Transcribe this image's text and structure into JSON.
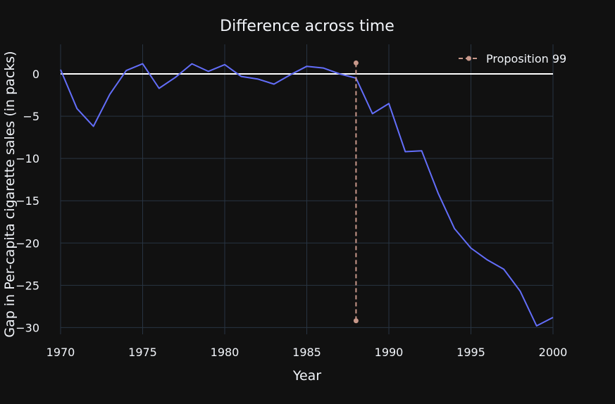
{
  "chart_data": {
    "type": "line",
    "title": "Difference across time",
    "xlabel": "Year",
    "ylabel": "Gap in Per-capita cigarette sales (in packs)",
    "xlim": [
      1970,
      2000
    ],
    "ylim": [
      -30.8,
      3.5
    ],
    "x_ticks": [
      1970,
      1975,
      1980,
      1985,
      1990,
      1995,
      2000
    ],
    "y_ticks": [
      0,
      -5,
      -10,
      -15,
      -20,
      -25,
      -30
    ],
    "grid": true,
    "legend_position": "top-right",
    "colors": {
      "background": "#111111",
      "grid": "#283442",
      "gap_line": "#636efa",
      "zero_line": "#ffffff",
      "proposition_line": "#c8988a",
      "text": "#f2f5fa"
    },
    "series": [
      {
        "x": [
          1970,
          1971,
          1972,
          1973,
          1974,
          1975,
          1976,
          1977,
          1978,
          1979,
          1980,
          1981,
          1982,
          1983,
          1984,
          1985,
          1986,
          1987,
          1988,
          1989,
          1990,
          1991,
          1992,
          1993,
          1994,
          1995,
          1996,
          1997,
          1998,
          1999,
          2000
        ],
        "values": [
          0.5,
          -4.1,
          -6.2,
          -2.4,
          0.4,
          1.2,
          -1.7,
          -0.4,
          1.2,
          0.3,
          1.1,
          -0.3,
          -0.6,
          -1.2,
          -0.1,
          0.9,
          0.7,
          0.0,
          -0.5,
          -4.7,
          -3.5,
          -9.2,
          -9.1,
          -14.1,
          -18.3,
          -20.6,
          -22.0,
          -23.1,
          -25.7,
          -29.8,
          -28.8
        ]
      },
      {
        "name": "Proposition 99",
        "x": [
          1988,
          1988
        ],
        "values": [
          1.3,
          -29.2
        ]
      }
    ],
    "zero_line": 0
  }
}
